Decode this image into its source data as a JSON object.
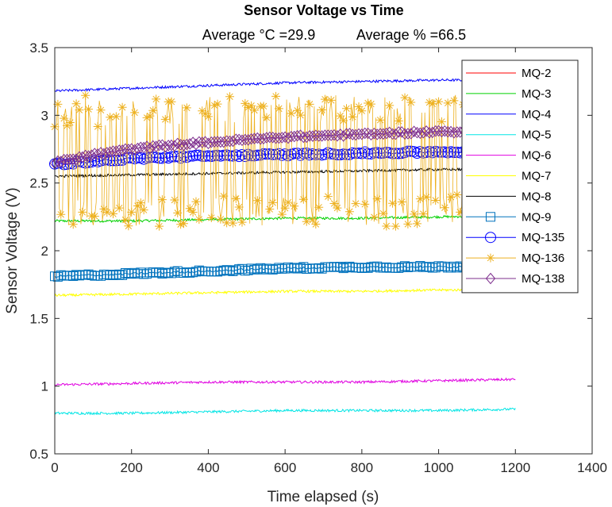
{
  "chart_data": {
    "type": "line",
    "title": "Sensor Voltage vs Time",
    "subtitle_left": "Average °C =29.9",
    "subtitle_right": "Average % =66.5",
    "xlabel": "Time elapsed (s)",
    "ylabel": "Sensor Voltage (V)",
    "xlim": [
      0,
      1400
    ],
    "ylim": [
      0.5,
      3.5
    ],
    "xticks": [
      0,
      200,
      400,
      600,
      800,
      1000,
      1200,
      1400
    ],
    "yticks": [
      0.5,
      1,
      1.5,
      2,
      2.5,
      3,
      3.5
    ],
    "xtick_labels": [
      "0",
      "200",
      "400",
      "600",
      "800",
      "1000",
      "1200",
      "1400"
    ],
    "ytick_labels": [
      "0.5",
      "1",
      "1.5",
      "2",
      "2.5",
      "3",
      "3.5"
    ],
    "grid": false,
    "legend_position": "top-right",
    "series": [
      {
        "name": "MQ-2",
        "color": "#ff0000",
        "marker": "none",
        "x": [
          0,
          1200
        ],
        "values": [
          null,
          null
        ]
      },
      {
        "name": "MQ-3",
        "color": "#00d000",
        "marker": "none",
        "x": [
          0,
          200,
          400,
          600,
          800,
          1000,
          1200
        ],
        "values": [
          2.22,
          2.22,
          2.23,
          2.24,
          2.24,
          2.25,
          2.26
        ]
      },
      {
        "name": "MQ-4",
        "color": "#0000ff",
        "marker": "none",
        "x": [
          0,
          200,
          400,
          600,
          800,
          1000,
          1200
        ],
        "values": [
          3.18,
          3.2,
          3.22,
          3.24,
          3.25,
          3.26,
          3.26
        ]
      },
      {
        "name": "MQ-5",
        "color": "#00e5e5",
        "marker": "none",
        "x": [
          0,
          200,
          400,
          600,
          800,
          1000,
          1200
        ],
        "values": [
          0.8,
          0.8,
          0.81,
          0.82,
          0.82,
          0.82,
          0.83
        ]
      },
      {
        "name": "MQ-6",
        "color": "#e000e0",
        "marker": "none",
        "x": [
          0,
          200,
          400,
          600,
          800,
          1000,
          1200
        ],
        "values": [
          1.01,
          1.02,
          1.03,
          1.03,
          1.03,
          1.04,
          1.05
        ]
      },
      {
        "name": "MQ-7",
        "color": "#ffff00",
        "marker": "none",
        "x": [
          0,
          200,
          400,
          600,
          800,
          1000,
          1200
        ],
        "values": [
          1.67,
          1.68,
          1.69,
          1.7,
          1.7,
          1.71,
          1.71
        ]
      },
      {
        "name": "MQ-8",
        "color": "#000000",
        "marker": "none",
        "x": [
          0,
          200,
          400,
          600,
          800,
          1000,
          1200
        ],
        "values": [
          2.55,
          2.56,
          2.57,
          2.58,
          2.59,
          2.6,
          2.6
        ]
      },
      {
        "name": "MQ-9",
        "color": "#0072bd",
        "marker": "square",
        "x": [
          0,
          200,
          400,
          600,
          800,
          1000,
          1200
        ],
        "values": [
          1.81,
          1.83,
          1.85,
          1.87,
          1.88,
          1.88,
          1.89
        ]
      },
      {
        "name": "MQ-135",
        "color": "#0000ff",
        "marker": "circle",
        "x": [
          0,
          200,
          400,
          600,
          800,
          1000,
          1200
        ],
        "values": [
          2.64,
          2.68,
          2.7,
          2.71,
          2.72,
          2.73,
          2.73
        ]
      },
      {
        "name": "MQ-136",
        "color": "#edb120",
        "marker": "star",
        "x": [
          0,
          200,
          400,
          600,
          800,
          1000,
          1200
        ],
        "values": [
          2.6,
          2.65,
          2.68,
          2.7,
          2.7,
          2.7,
          2.7
        ],
        "range": [
          2.18,
          3.15
        ]
      },
      {
        "name": "MQ-138",
        "color": "#7e2f8e",
        "marker": "diamond",
        "x": [
          0,
          100,
          200,
          300,
          400,
          500,
          600,
          700,
          800,
          900,
          1000,
          1100,
          1200
        ],
        "values": [
          2.65,
          2.71,
          2.75,
          2.78,
          2.8,
          2.82,
          2.84,
          2.85,
          2.86,
          2.87,
          2.88,
          2.88,
          2.88
        ]
      }
    ]
  }
}
